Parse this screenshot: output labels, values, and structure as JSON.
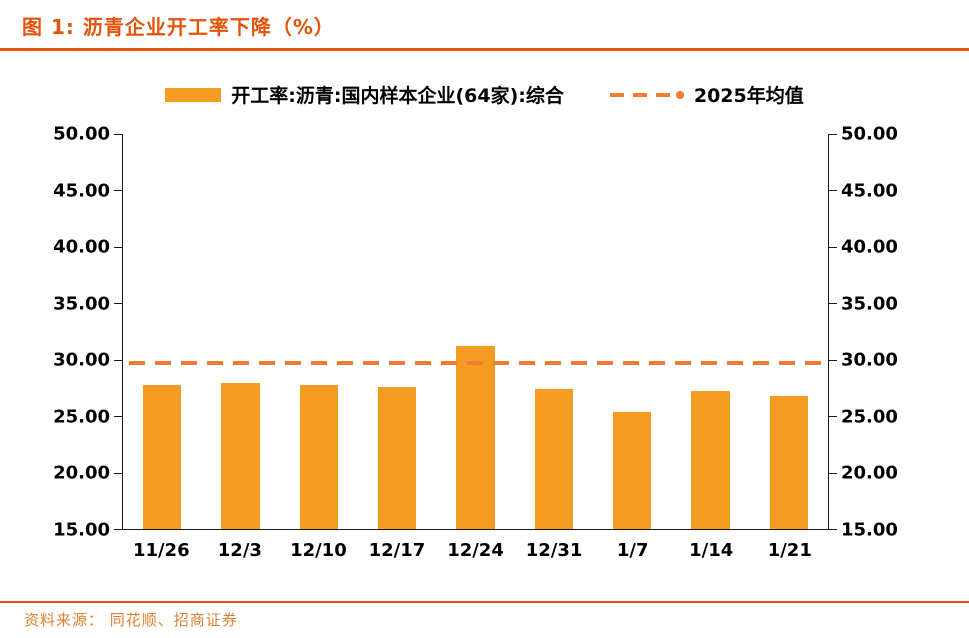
{
  "header": {
    "title": "图 1:  沥青企业开工率下降（%）"
  },
  "footer": {
    "source": "资料来源：  同花顺、招商证券"
  },
  "colors": {
    "accent": "#e5520a",
    "bar": "#f59b22",
    "mean_line": "#ee7d33",
    "source_text": "#e08033",
    "axis": "#1a1a1a"
  },
  "chart_data": {
    "type": "bar",
    "title": "沥青企业开工率下降（%）",
    "categories": [
      "11/26",
      "12/3",
      "12/10",
      "12/17",
      "12/24",
      "12/31",
      "1/7",
      "1/14",
      "1/21"
    ],
    "series": [
      {
        "name": "开工率:沥青:国内样本企业(64家):综合",
        "type": "bar",
        "values": [
          27.8,
          27.9,
          27.8,
          27.6,
          31.2,
          27.4,
          25.4,
          27.2,
          26.8
        ],
        "color": "#f59b22"
      },
      {
        "name": "2025年均值",
        "type": "dashed-line",
        "value": 29.7,
        "color": "#ee7d33"
      }
    ],
    "ylim": [
      15,
      50
    ],
    "ytick_step": 5,
    "yticks": [
      "50.00",
      "45.00",
      "40.00",
      "35.00",
      "30.00",
      "25.00",
      "20.00",
      "15.00"
    ],
    "y_axis_sides": [
      "left",
      "right"
    ],
    "grid": false,
    "legend_position": "top"
  }
}
